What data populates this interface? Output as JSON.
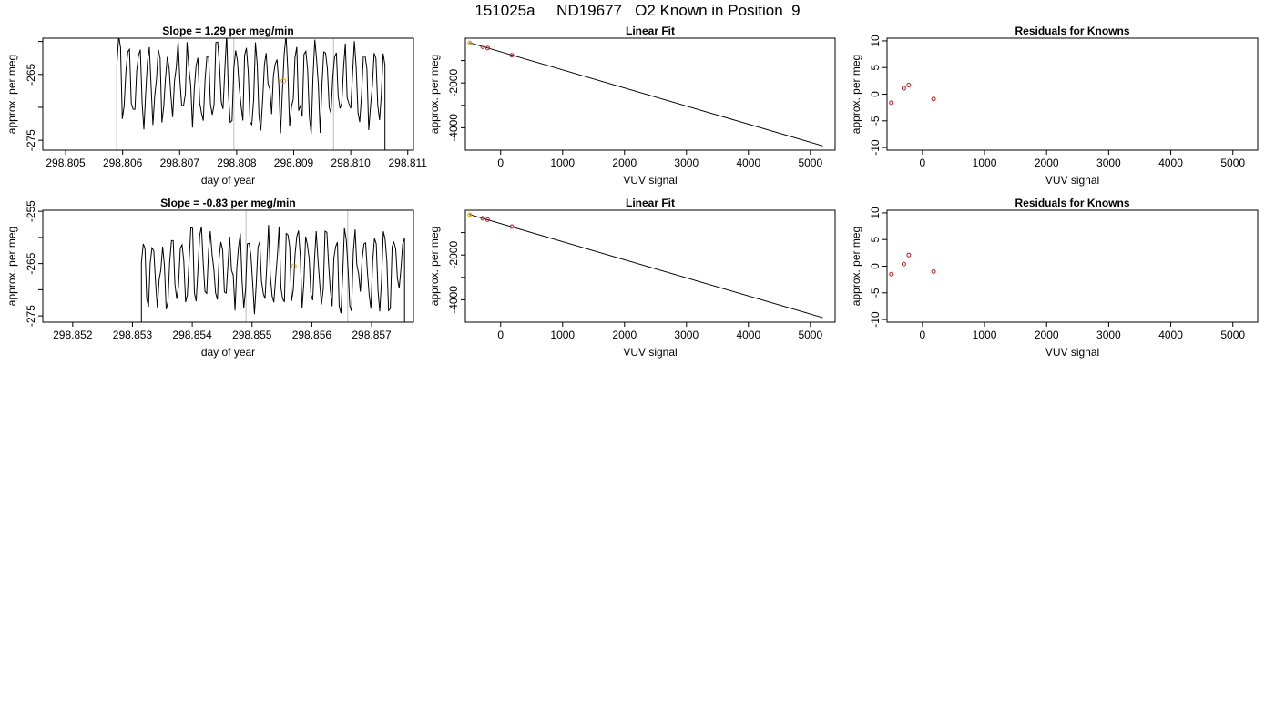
{
  "page": {
    "title": "151025a     ND19677   O2 Known in Position  9"
  },
  "chart_data": [
    {
      "type": "line",
      "title": "Slope =  1.29  per meg/min",
      "xlabel": "day of year",
      "ylabel": "approx. per meg",
      "xlim": [
        298.8046,
        298.8111
      ],
      "ylim": [
        -276.5,
        -259.5
      ],
      "xticks": [
        298.805,
        298.806,
        298.807,
        298.808,
        298.809,
        298.81,
        298.811
      ],
      "xtick_labels": [
        "298.805",
        "298.806",
        "298.807",
        "298.808",
        "298.809",
        "298.810",
        "298.811"
      ],
      "yticks": [
        -275,
        -270,
        -265,
        -260
      ],
      "ytick_labels": [
        "-275",
        "",
        "-265",
        ""
      ],
      "vlines": [
        298.80795,
        298.8097
      ],
      "highlight_point": {
        "x": 298.80882,
        "y": -266.0
      },
      "trace": {
        "x_start": 298.8059,
        "x_end": 298.8106,
        "seed": 7,
        "base": -266.5,
        "amp": 5.5,
        "low_start": -282,
        "low_end": -285
      }
    },
    {
      "type": "scatter",
      "title": "Linear Fit",
      "xlabel": "VUV signal",
      "ylabel": "approx. per meg",
      "xlim": [
        -570,
        5400
      ],
      "ylim": [
        -5000,
        0
      ],
      "xticks": [
        0,
        1000,
        2000,
        3000,
        4000,
        5000
      ],
      "xtick_labels": [
        "0",
        "1000",
        "2000",
        "3000",
        "4000",
        "5000"
      ],
      "yticks": [
        -4000,
        -3000,
        -2000,
        -1000
      ],
      "ytick_labels": [
        "-4000",
        "",
        "-2000",
        ""
      ],
      "points": [
        {
          "x": -500,
          "y": -210,
          "color": "#e69f00"
        },
        {
          "x": -290,
          "y": -380,
          "color": "#b22222"
        },
        {
          "x": -210,
          "y": -440,
          "color": "#b22222"
        },
        {
          "x": 180,
          "y": -760,
          "color": "#b22222"
        }
      ],
      "line": {
        "x": [
          -510,
          5200
        ],
        "y": [
          -195,
          -4810
        ]
      }
    },
    {
      "type": "scatter",
      "title": "Residuals for Knowns",
      "xlabel": "VUV signal",
      "ylabel": "approx. per meg",
      "xlim": [
        -570,
        5400
      ],
      "ylim": [
        -10.5,
        10.5
      ],
      "xticks": [
        0,
        1000,
        2000,
        3000,
        4000,
        5000
      ],
      "xtick_labels": [
        "0",
        "1000",
        "2000",
        "3000",
        "4000",
        "5000"
      ],
      "yticks": [
        -10,
        -5,
        0,
        5,
        10
      ],
      "ytick_labels": [
        "-10",
        "-5",
        "0",
        "5",
        "10"
      ],
      "points": [
        {
          "x": -500,
          "y": -1.6,
          "color": "#b22222"
        },
        {
          "x": -300,
          "y": 1.1,
          "color": "#b22222"
        },
        {
          "x": -220,
          "y": 1.7,
          "color": "#b22222"
        },
        {
          "x": 180,
          "y": -0.9,
          "color": "#b22222"
        }
      ]
    },
    {
      "type": "line",
      "title": "Slope =  -0.83  per meg/min",
      "xlabel": "day of year",
      "ylabel": "approx. per meg",
      "xlim": [
        298.8515,
        298.8577
      ],
      "ylim": [
        -276.2,
        -254.8
      ],
      "xticks": [
        298.852,
        298.853,
        298.854,
        298.855,
        298.856,
        298.857
      ],
      "xtick_labels": [
        "298.852",
        "298.853",
        "298.854",
        "298.855",
        "298.856",
        "298.857"
      ],
      "yticks": [
        -275,
        -270,
        -265,
        -260,
        -255
      ],
      "ytick_labels": [
        "-275",
        "",
        "-265",
        "",
        "-255"
      ],
      "vlines": [
        298.8549,
        298.8566
      ],
      "highlight_point": {
        "x": 298.8557,
        "y": -265.5
      },
      "trace": {
        "x_start": 298.85315,
        "x_end": 298.85755,
        "seed": 13,
        "base": -266.0,
        "amp": 6.5,
        "low_start": -281,
        "low_end": -282
      }
    },
    {
      "type": "scatter",
      "title": "Linear Fit",
      "xlabel": "VUV signal",
      "ylabel": "approx. per meg",
      "xlim": [
        -570,
        5400
      ],
      "ylim": [
        -5000,
        0
      ],
      "xticks": [
        0,
        1000,
        2000,
        3000,
        4000,
        5000
      ],
      "xtick_labels": [
        "0",
        "1000",
        "2000",
        "3000",
        "4000",
        "5000"
      ],
      "yticks": [
        -4000,
        -3000,
        -2000,
        -1000
      ],
      "ytick_labels": [
        "-4000",
        "",
        "-2000",
        ""
      ],
      "points": [
        {
          "x": -500,
          "y": -200,
          "color": "#e69f00"
        },
        {
          "x": -290,
          "y": -360,
          "color": "#b22222"
        },
        {
          "x": -210,
          "y": -420,
          "color": "#b22222"
        },
        {
          "x": 180,
          "y": -730,
          "color": "#b22222"
        }
      ],
      "line": {
        "x": [
          -510,
          5200
        ],
        "y": [
          -185,
          -4800
        ]
      }
    },
    {
      "type": "scatter",
      "title": "Residuals for Knowns",
      "xlabel": "VUV signal",
      "ylabel": "approx. per meg",
      "xlim": [
        -570,
        5400
      ],
      "ylim": [
        -10.5,
        10.5
      ],
      "xticks": [
        0,
        1000,
        2000,
        3000,
        4000,
        5000
      ],
      "xtick_labels": [
        "0",
        "1000",
        "2000",
        "3000",
        "4000",
        "5000"
      ],
      "yticks": [
        -10,
        -5,
        0,
        5,
        10
      ],
      "ytick_labels": [
        "-10",
        "-5",
        "0",
        "5",
        "10"
      ],
      "points": [
        {
          "x": -500,
          "y": -1.5,
          "color": "#b22222"
        },
        {
          "x": -300,
          "y": 0.4,
          "color": "#b22222"
        },
        {
          "x": -220,
          "y": 2.1,
          "color": "#b22222"
        },
        {
          "x": 180,
          "y": -1.0,
          "color": "#b22222"
        }
      ]
    }
  ]
}
